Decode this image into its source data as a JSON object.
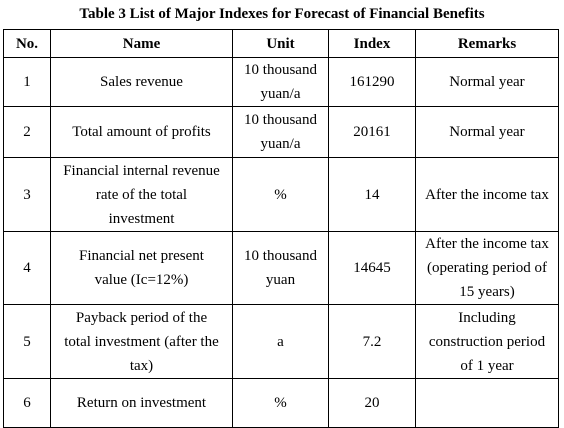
{
  "title": "Table 3 List of Major Indexes for Forecast of Financial Benefits",
  "headers": [
    "No.",
    "Name",
    "Unit",
    "Index",
    "Remarks"
  ],
  "rows": [
    {
      "no": "1",
      "name": [
        "Sales revenue"
      ],
      "unit": [
        "10 thousand",
        "yuan/a"
      ],
      "index": "161290",
      "remarks": [
        "Normal year"
      ]
    },
    {
      "no": "2",
      "name": [
        "Total amount of profits"
      ],
      "unit": [
        "10 thousand",
        "yuan/a"
      ],
      "index": "20161",
      "remarks": [
        "Normal year"
      ]
    },
    {
      "no": "3",
      "name": [
        "Financial internal revenue",
        "rate of the total",
        "investment"
      ],
      "unit": [
        "%"
      ],
      "index": "14",
      "remarks": [
        "After the income tax"
      ]
    },
    {
      "no": "4",
      "name": [
        "Financial net present",
        "value (Ic=12%)"
      ],
      "unit": [
        "10 thousand",
        "yuan"
      ],
      "index": "14645",
      "remarks": [
        "After the income tax",
        "(operating period of",
        "15 years)"
      ]
    },
    {
      "no": "5",
      "name": [
        "Payback period of the",
        "total investment (after the",
        "tax)"
      ],
      "unit": [
        "a"
      ],
      "index": "7.2",
      "remarks": [
        "Including",
        "construction period",
        "of 1 year"
      ]
    },
    {
      "no": "6",
      "name": [
        "Return on investment"
      ],
      "unit": [
        "%"
      ],
      "index": "20",
      "remarks": [
        ""
      ]
    }
  ]
}
